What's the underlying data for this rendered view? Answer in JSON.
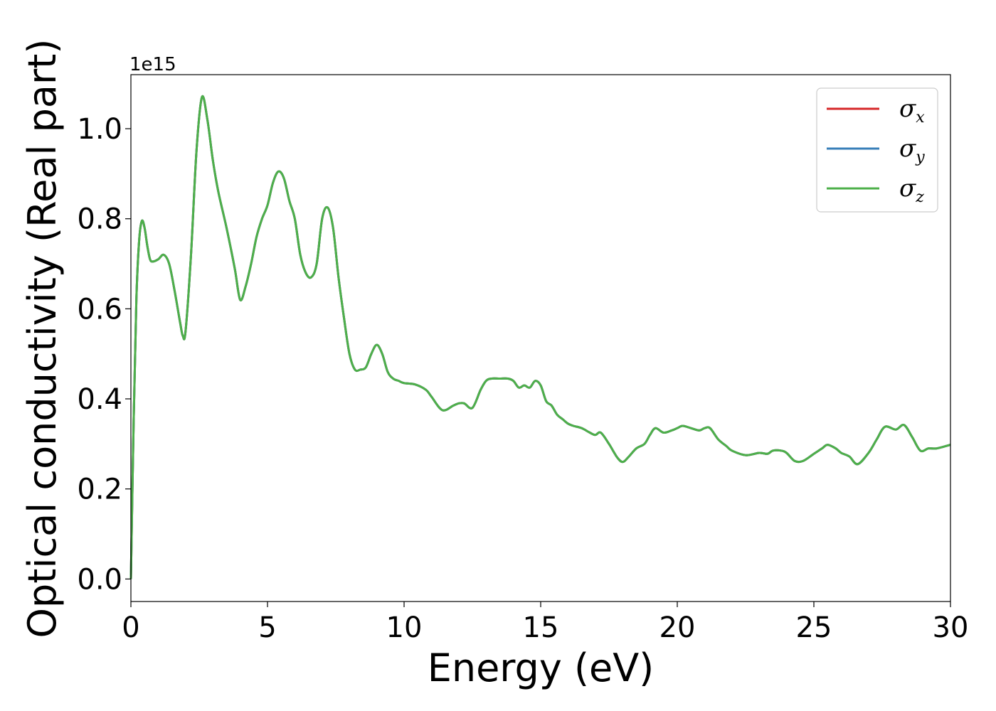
{
  "chart_data": {
    "type": "line",
    "title": "",
    "xlabel": "Energy (eV)",
    "ylabel": "Optical conductivity (Real part)",
    "y_offset_label": "1e15",
    "xlim": [
      0,
      30
    ],
    "ylim": [
      -0.05,
      1.12
    ],
    "y_scale_factor": 1000000000000000.0,
    "x_ticks": [
      0,
      5,
      10,
      15,
      20,
      25,
      30
    ],
    "x_tick_labels": [
      "0",
      "5",
      "10",
      "15",
      "20",
      "25",
      "30"
    ],
    "y_ticks": [
      0.0,
      0.2,
      0.4,
      0.6,
      0.8,
      1.0
    ],
    "y_tick_labels": [
      "0.0",
      "0.2",
      "0.4",
      "0.6",
      "0.8",
      "1.0"
    ],
    "grid": false,
    "legend_position": "top-right",
    "x": [
      0,
      0.1,
      0.2,
      0.3,
      0.4,
      0.5,
      0.6,
      0.7,
      0.8,
      1.0,
      1.2,
      1.4,
      1.6,
      1.8,
      1.9,
      2.0,
      2.2,
      2.4,
      2.6,
      2.8,
      3.0,
      3.2,
      3.5,
      3.8,
      4.0,
      4.2,
      4.4,
      4.6,
      4.8,
      5.0,
      5.2,
      5.4,
      5.6,
      5.8,
      6.0,
      6.2,
      6.4,
      6.6,
      6.8,
      7.0,
      7.2,
      7.4,
      7.6,
      7.8,
      8.0,
      8.2,
      8.4,
      8.6,
      8.8,
      9.0,
      9.2,
      9.4,
      9.6,
      9.8,
      10.0,
      10.4,
      10.8,
      11.0,
      11.4,
      11.8,
      12.0,
      12.2,
      12.5,
      12.8,
      13.0,
      13.2,
      13.5,
      13.8,
      14.0,
      14.2,
      14.4,
      14.6,
      14.8,
      15.0,
      15.2,
      15.4,
      15.6,
      15.8,
      16.0,
      16.2,
      16.5,
      16.8,
      17.0,
      17.2,
      17.5,
      17.8,
      18.0,
      18.2,
      18.5,
      18.8,
      19.0,
      19.2,
      19.5,
      19.8,
      20.0,
      20.2,
      20.5,
      20.8,
      21.0,
      21.2,
      21.5,
      21.8,
      22.0,
      22.5,
      23.0,
      23.3,
      23.5,
      23.8,
      24.0,
      24.3,
      24.6,
      25.0,
      25.3,
      25.5,
      25.8,
      26.0,
      26.3,
      26.6,
      27.0,
      27.3,
      27.6,
      28.0,
      28.3,
      28.6,
      28.9,
      29.2,
      29.5,
      30.0
    ],
    "series": [
      {
        "name": "σx",
        "color": "#d62728",
        "values": [
          0.0,
          0.35,
          0.62,
          0.75,
          0.795,
          0.78,
          0.74,
          0.71,
          0.705,
          0.71,
          0.72,
          0.7,
          0.64,
          0.57,
          0.54,
          0.55,
          0.72,
          0.95,
          1.07,
          1.02,
          0.93,
          0.86,
          0.78,
          0.69,
          0.62,
          0.65,
          0.7,
          0.76,
          0.8,
          0.83,
          0.88,
          0.905,
          0.89,
          0.84,
          0.8,
          0.72,
          0.68,
          0.67,
          0.7,
          0.8,
          0.825,
          0.78,
          0.67,
          0.58,
          0.5,
          0.465,
          0.465,
          0.47,
          0.5,
          0.52,
          0.5,
          0.46,
          0.445,
          0.44,
          0.435,
          0.432,
          0.42,
          0.405,
          0.375,
          0.385,
          0.39,
          0.39,
          0.38,
          0.42,
          0.44,
          0.445,
          0.445,
          0.445,
          0.44,
          0.425,
          0.43,
          0.425,
          0.44,
          0.43,
          0.395,
          0.385,
          0.365,
          0.355,
          0.345,
          0.34,
          0.335,
          0.325,
          0.32,
          0.325,
          0.3,
          0.27,
          0.26,
          0.27,
          0.29,
          0.3,
          0.32,
          0.335,
          0.325,
          0.33,
          0.335,
          0.34,
          0.335,
          0.33,
          0.335,
          0.335,
          0.31,
          0.295,
          0.285,
          0.275,
          0.28,
          0.278,
          0.285,
          0.285,
          0.28,
          0.262,
          0.262,
          0.278,
          0.29,
          0.298,
          0.29,
          0.28,
          0.272,
          0.255,
          0.28,
          0.31,
          0.338,
          0.332,
          0.342,
          0.315,
          0.285,
          0.29,
          0.29,
          0.298
        ]
      },
      {
        "name": "σy",
        "color": "#377eb8",
        "values": [
          0.0,
          0.35,
          0.62,
          0.75,
          0.795,
          0.78,
          0.74,
          0.71,
          0.705,
          0.71,
          0.72,
          0.7,
          0.64,
          0.57,
          0.54,
          0.55,
          0.72,
          0.95,
          1.07,
          1.02,
          0.93,
          0.86,
          0.78,
          0.69,
          0.62,
          0.65,
          0.7,
          0.76,
          0.8,
          0.83,
          0.88,
          0.905,
          0.89,
          0.84,
          0.8,
          0.72,
          0.68,
          0.67,
          0.7,
          0.8,
          0.825,
          0.78,
          0.67,
          0.58,
          0.5,
          0.465,
          0.465,
          0.47,
          0.5,
          0.52,
          0.5,
          0.46,
          0.445,
          0.44,
          0.435,
          0.432,
          0.42,
          0.405,
          0.375,
          0.385,
          0.39,
          0.39,
          0.38,
          0.42,
          0.44,
          0.445,
          0.445,
          0.445,
          0.44,
          0.425,
          0.43,
          0.425,
          0.44,
          0.43,
          0.395,
          0.385,
          0.365,
          0.355,
          0.345,
          0.34,
          0.335,
          0.325,
          0.32,
          0.325,
          0.3,
          0.27,
          0.26,
          0.27,
          0.29,
          0.3,
          0.32,
          0.335,
          0.325,
          0.33,
          0.335,
          0.34,
          0.335,
          0.33,
          0.335,
          0.335,
          0.31,
          0.295,
          0.285,
          0.275,
          0.28,
          0.278,
          0.285,
          0.285,
          0.28,
          0.262,
          0.262,
          0.278,
          0.29,
          0.298,
          0.29,
          0.28,
          0.272,
          0.255,
          0.28,
          0.31,
          0.338,
          0.332,
          0.342,
          0.315,
          0.285,
          0.29,
          0.29,
          0.298
        ]
      },
      {
        "name": "σz",
        "color": "#4daf4a",
        "values": [
          0.0,
          0.35,
          0.62,
          0.75,
          0.795,
          0.78,
          0.74,
          0.71,
          0.705,
          0.71,
          0.72,
          0.7,
          0.64,
          0.57,
          0.54,
          0.55,
          0.72,
          0.95,
          1.07,
          1.02,
          0.93,
          0.86,
          0.78,
          0.69,
          0.62,
          0.65,
          0.7,
          0.76,
          0.8,
          0.83,
          0.88,
          0.905,
          0.89,
          0.84,
          0.8,
          0.72,
          0.68,
          0.67,
          0.7,
          0.8,
          0.825,
          0.78,
          0.67,
          0.58,
          0.5,
          0.465,
          0.465,
          0.47,
          0.5,
          0.52,
          0.5,
          0.46,
          0.445,
          0.44,
          0.435,
          0.432,
          0.42,
          0.405,
          0.375,
          0.385,
          0.39,
          0.39,
          0.38,
          0.42,
          0.44,
          0.445,
          0.445,
          0.445,
          0.44,
          0.425,
          0.43,
          0.425,
          0.44,
          0.43,
          0.395,
          0.385,
          0.365,
          0.355,
          0.345,
          0.34,
          0.335,
          0.325,
          0.32,
          0.325,
          0.3,
          0.27,
          0.26,
          0.27,
          0.29,
          0.3,
          0.32,
          0.335,
          0.325,
          0.33,
          0.335,
          0.34,
          0.335,
          0.33,
          0.335,
          0.335,
          0.31,
          0.295,
          0.285,
          0.275,
          0.28,
          0.278,
          0.285,
          0.285,
          0.28,
          0.262,
          0.262,
          0.278,
          0.29,
          0.298,
          0.29,
          0.28,
          0.272,
          0.255,
          0.28,
          0.31,
          0.338,
          0.332,
          0.342,
          0.315,
          0.285,
          0.29,
          0.29,
          0.298
        ]
      }
    ],
    "legend": [
      {
        "symbol": "σ",
        "subscript": "x",
        "color": "#d62728"
      },
      {
        "symbol": "σ",
        "subscript": "y",
        "color": "#377eb8"
      },
      {
        "symbol": "σ",
        "subscript": "z",
        "color": "#4daf4a"
      }
    ]
  }
}
